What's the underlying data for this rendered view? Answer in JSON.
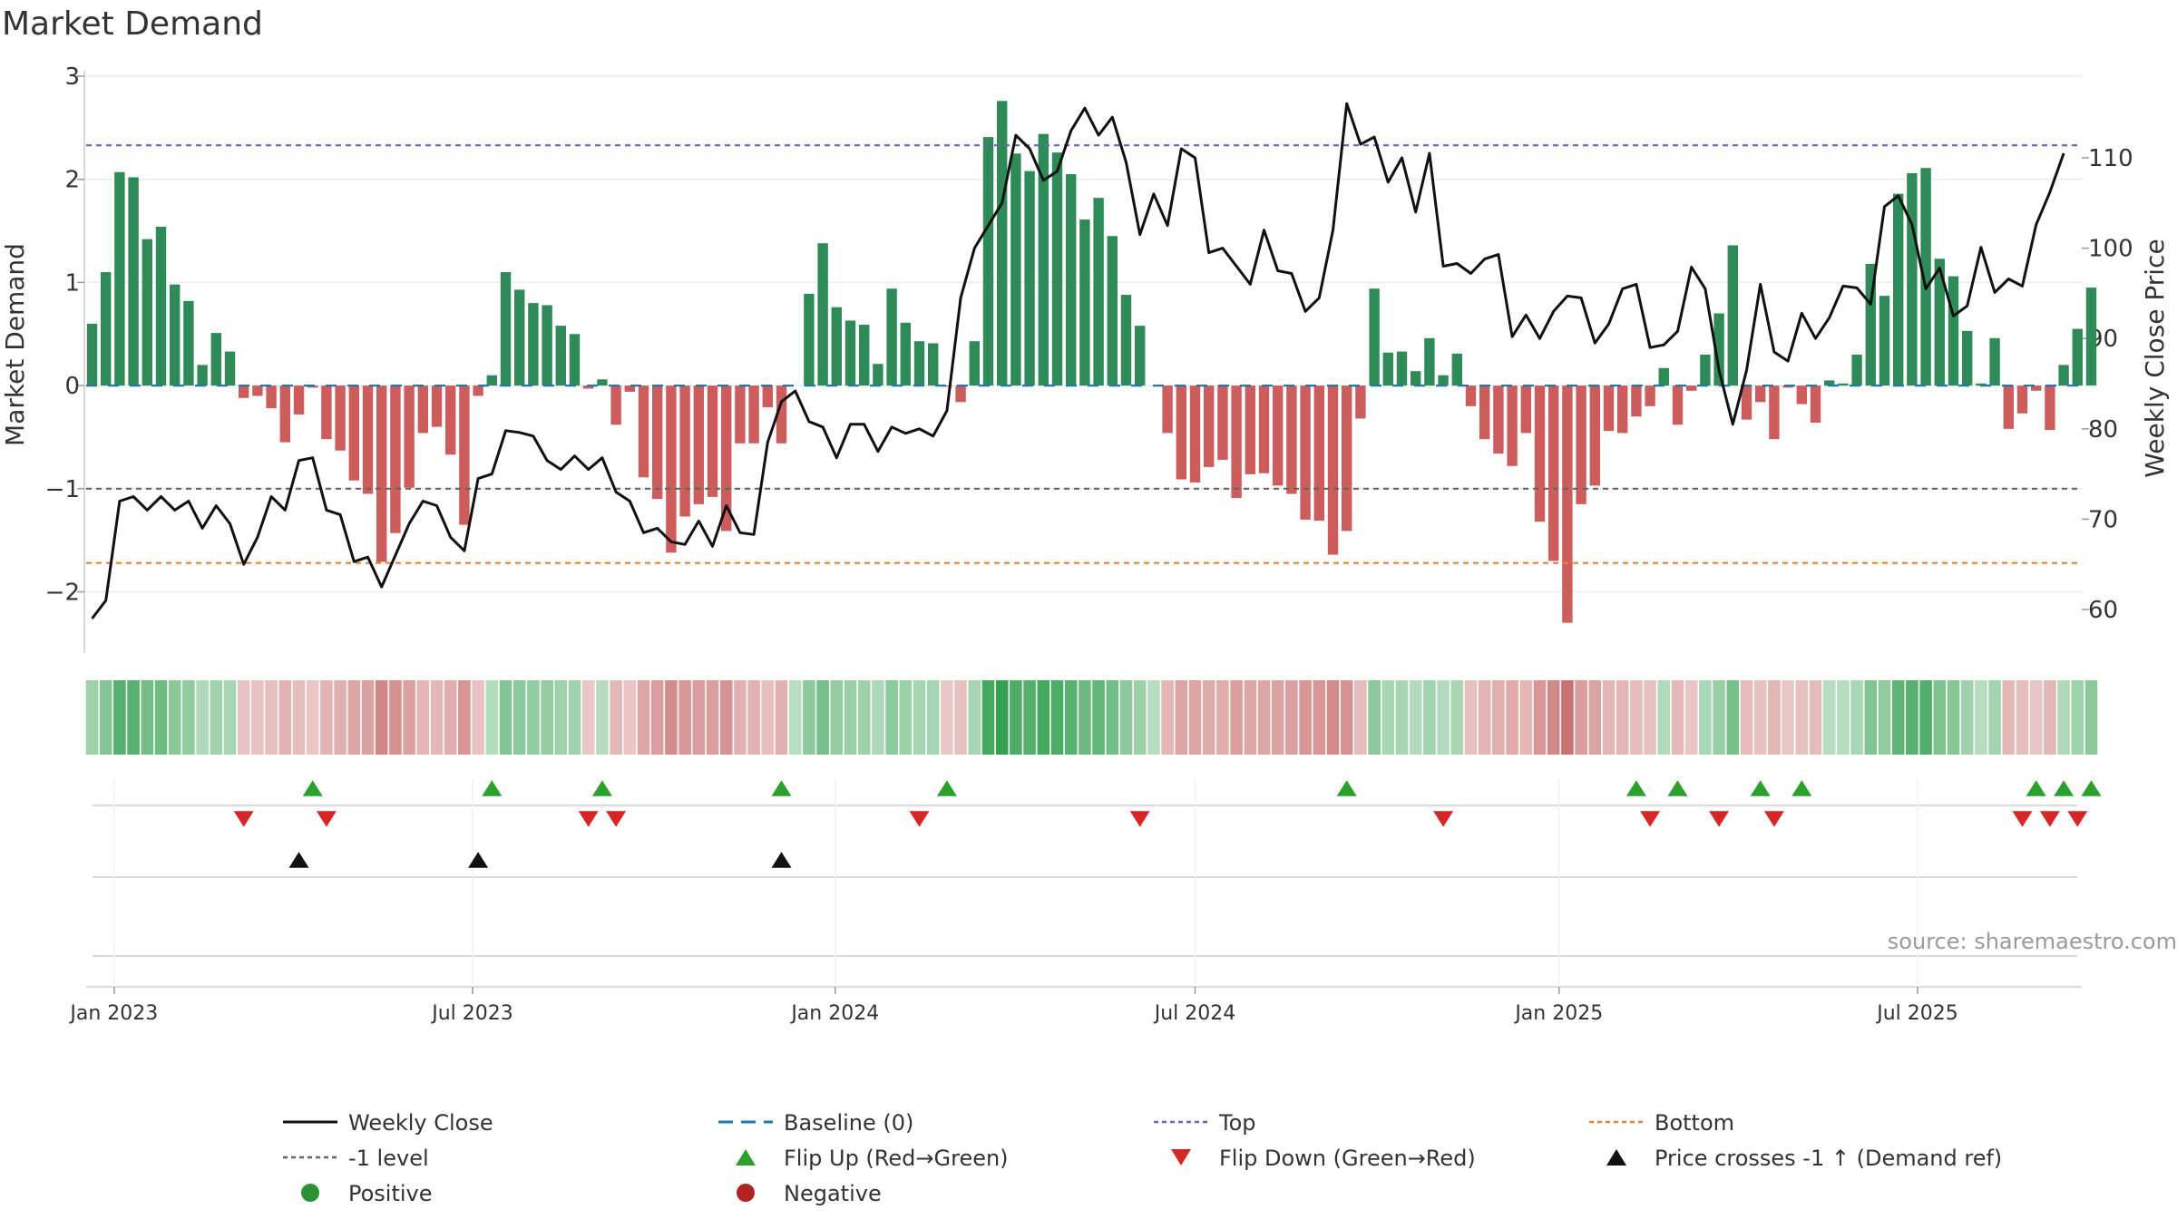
{
  "chart_data": {
    "type": "bar+line",
    "title": "Market Demand",
    "ylabel_left": "Market Demand",
    "ylabel_right": "Weekly Close Price",
    "ylim_left": [
      -2.5,
      3.0
    ],
    "ylim_right": [
      55,
      117
    ],
    "left_ticks": [
      {
        "value": 3,
        "label": "3"
      },
      {
        "value": 2,
        "label": "2"
      },
      {
        "value": 1,
        "label": "1"
      },
      {
        "value": 0,
        "label": "0"
      },
      {
        "value": -1,
        "label": "−1"
      },
      {
        "value": -2,
        "label": "−2"
      }
    ],
    "right_ticks": [
      {
        "value": 110,
        "label": "110"
      },
      {
        "value": 100,
        "label": "100"
      },
      {
        "value": 90,
        "label": "90"
      },
      {
        "value": 80,
        "label": "80"
      },
      {
        "value": 70,
        "label": "70"
      },
      {
        "value": 60,
        "label": "60"
      }
    ],
    "date_ticks": [
      {
        "index": 1.6,
        "label": "Jan 2023"
      },
      {
        "index": 27.6,
        "label": "Jul 2023"
      },
      {
        "index": 53.9,
        "label": "Jan 2024"
      },
      {
        "index": 80.0,
        "label": "Jul 2024"
      },
      {
        "index": 106.4,
        "label": "Jan 2025"
      },
      {
        "index": 132.4,
        "label": "Jul 2025"
      }
    ],
    "reference_lines": [
      {
        "name": "Top",
        "value": 2.33,
        "color": "#6464c8",
        "dash": "6,5"
      },
      {
        "name": "-1 level",
        "value": -1.0,
        "color": "#666666",
        "dash": "6,5"
      },
      {
        "name": "Bottom",
        "value": -1.72,
        "color": "#e8822a",
        "dash": "6,5"
      },
      {
        "name": "Baseline (0)",
        "value": 0,
        "color": "#1f77b4",
        "dash": "12,12"
      }
    ],
    "demand": [
      0.6,
      1.1,
      2.07,
      2.02,
      1.42,
      1.54,
      0.98,
      0.82,
      0.2,
      0.51,
      0.33,
      -0.12,
      -0.1,
      -0.22,
      -0.55,
      -0.28,
      -0.02,
      -0.52,
      -0.63,
      -0.92,
      -1.05,
      -1.71,
      -1.43,
      -0.99,
      -0.46,
      -0.4,
      -0.67,
      -1.35,
      -0.1,
      0.1,
      1.1,
      0.93,
      0.8,
      0.78,
      0.58,
      0.5,
      -0.03,
      0.06,
      -0.38,
      -0.06,
      -0.89,
      -1.1,
      -1.62,
      -1.27,
      -1.15,
      -1.08,
      -1.41,
      -0.56,
      -0.56,
      -0.21,
      -0.56,
      0.0,
      0.89,
      1.38,
      0.76,
      0.63,
      0.59,
      0.21,
      0.94,
      0.61,
      0.43,
      0.41,
      -0.01,
      -0.16,
      0.43,
      2.41,
      2.76,
      2.25,
      2.08,
      2.44,
      2.26,
      2.05,
      1.61,
      1.82,
      1.45,
      0.88,
      0.58,
      0.0,
      -0.46,
      -0.91,
      -0.94,
      -0.79,
      -0.72,
      -1.09,
      -0.86,
      -0.85,
      -0.97,
      -1.05,
      -1.3,
      -1.31,
      -1.64,
      -1.41,
      -0.32,
      0.94,
      0.32,
      0.33,
      0.14,
      0.46,
      0.1,
      0.31,
      -0.2,
      -0.52,
      -0.66,
      -0.78,
      -0.46,
      -1.32,
      -1.7,
      -2.3,
      -1.15,
      -0.97,
      -0.44,
      -0.46,
      -0.3,
      -0.2,
      0.17,
      -0.38,
      -0.05,
      0.3,
      0.7,
      1.36,
      -0.33,
      -0.16,
      -0.52,
      -0.02,
      -0.18,
      -0.36,
      0.05,
      0.02,
      0.3,
      1.18,
      0.87,
      1.86,
      2.06,
      2.11,
      1.23,
      1.06,
      0.53,
      0.02,
      0.46,
      -0.42,
      -0.27,
      -0.05,
      -0.43,
      0.2,
      0.55,
      0.95
    ],
    "close": [
      59,
      61,
      72,
      72.5,
      71,
      72.5,
      71,
      72,
      69,
      71.5,
      69.5,
      65,
      68,
      72.5,
      71,
      76.5,
      76.8,
      71,
      70.5,
      65.3,
      65.8,
      62.5,
      66,
      69.5,
      72,
      71.5,
      68,
      66.5,
      74.5,
      75,
      79.8,
      79.6,
      79.2,
      76.5,
      75.5,
      77,
      75.5,
      76.8,
      73,
      72,
      68.5,
      69,
      67.5,
      67.2,
      69.8,
      67,
      71.5,
      68.5,
      68.3,
      78.5,
      83,
      84.2,
      80.8,
      80.2,
      76.8,
      80.5,
      80.5,
      77.5,
      80.2,
      79.5,
      80,
      79.2,
      82,
      94.5,
      100,
      102.5,
      105,
      112.5,
      111,
      107.5,
      108.5,
      113,
      115.5,
      112.5,
      114.5,
      109.5,
      101.5,
      106,
      102.5,
      111,
      110,
      99.5,
      100,
      98,
      96,
      102,
      97.5,
      97.2,
      93,
      94.5,
      102,
      116,
      111.5,
      112.3,
      107.3,
      110,
      104,
      110.5,
      98,
      98.3,
      97.2,
      98.8,
      99.3,
      90.2,
      92.6,
      90,
      93,
      94.7,
      94.5,
      89.5,
      91.6,
      95.5,
      96,
      89,
      89.3,
      90.8,
      97.9,
      95.5,
      86.5,
      80.5,
      86.5,
      96,
      88.5,
      87.5,
      92.8,
      90,
      92.3,
      95.8,
      95.6,
      93.8,
      104.6,
      105.8,
      102.6,
      95.5,
      97.8,
      92.5,
      93.6,
      100.1,
      95.1,
      96.6,
      95.8,
      102.6,
      106.2,
      110.5
    ],
    "heat_strip": {
      "label": "Demand heat strip"
    },
    "flip_up_indices": [
      16,
      29,
      37,
      50,
      62,
      91,
      112,
      115,
      121,
      124,
      141,
      143,
      145
    ],
    "flip_down_indices": [
      11,
      17,
      36,
      38,
      60,
      76,
      98,
      113,
      118,
      122,
      140,
      142,
      144
    ],
    "cross_indices": [
      15,
      28,
      50
    ],
    "source": "source: sharemaestro.com",
    "legend": [
      {
        "symbol": "line-black",
        "label": "Weekly Close"
      },
      {
        "symbol": "dash-blue",
        "label": "Baseline (0)"
      },
      {
        "symbol": "dot-purple",
        "label": "Top"
      },
      {
        "symbol": "dot-orange",
        "label": "Bottom"
      },
      {
        "symbol": "dot-gray",
        "label": "-1 level"
      },
      {
        "symbol": "triangle-up-green",
        "label": "Flip Up (Red→Green)"
      },
      {
        "symbol": "triangle-down-red",
        "label": "Flip Down (Green→Red)"
      },
      {
        "symbol": "triangle-up-black",
        "label": "Price crosses -1 ↑ (Demand ref)"
      },
      {
        "symbol": "circle-green",
        "label": "Positive"
      },
      {
        "symbol": "circle-red",
        "label": "Negative"
      }
    ],
    "colors": {
      "positive_bar": "#2e8b57",
      "negative_bar": "#cd5c5c",
      "close_line": "#111111",
      "flip_up": "#2ca02c",
      "flip_down": "#d62728",
      "cross_marker": "#111111",
      "positive_dot": "#2a9134",
      "negative_dot": "#b22222"
    }
  }
}
